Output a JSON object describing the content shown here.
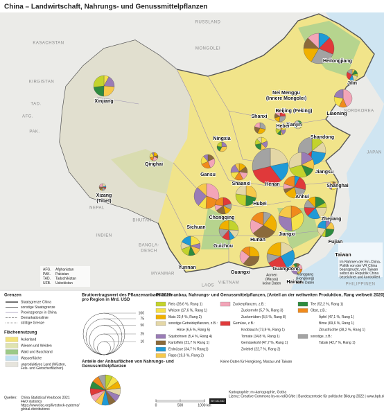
{
  "title": "China – Landwirtschaft, Nahrungs- und Genussmittelpflanzen",
  "map": {
    "provinces": [
      [
        "Xinjiang"
      ],
      [
        "Qinghai"
      ],
      [
        "Xizang",
        "(Tibet)"
      ],
      [
        "Gansu"
      ],
      [
        "Ningxia"
      ],
      [
        "Nei Menggu",
        "(Innere Mongolei)"
      ],
      [
        "Heilongjiang"
      ],
      [
        "Jilin"
      ],
      [
        "Liaoning"
      ],
      [
        "Beijing (Peking)"
      ],
      [
        "Tianjin"
      ],
      [
        "Hebei"
      ],
      [
        "Shanxi"
      ],
      [
        "Shandong"
      ],
      [
        "Shaanxi"
      ],
      [
        "Henan"
      ],
      [
        "Jiangsu"
      ],
      [
        "Shanghai"
      ],
      [
        "Anhui"
      ],
      [
        "Hubei"
      ],
      [
        "Sichuan"
      ],
      [
        "Chongqing"
      ],
      [
        "Zhejiang"
      ],
      [
        "Jiangxi"
      ],
      [
        "Hunan"
      ],
      [
        "Guizhou"
      ],
      [
        "Yunnan"
      ],
      [
        "Guangxi"
      ],
      [
        "Guangdong"
      ],
      [
        "Fujian"
      ],
      [
        "Taiwan"
      ],
      [
        "Hainan"
      ],
      [
        "Aomen",
        "(Macau)",
        "keine Daten"
      ],
      [
        "Xianggang",
        "(Hongkong)",
        "keine Daten"
      ]
    ],
    "countries": [
      "KASACHSTAN",
      "MONGOLEI",
      "RUSSLAND",
      "KIRGISTAN",
      "TAD.",
      "AFG.",
      "PAK.",
      "INDIEN",
      "NEPAL",
      "BHUTAN",
      "BANGLA-",
      "DESCH",
      "MYANMAR",
      "LAOS",
      "VIETNAM",
      "NORDKOREA",
      "JAPAN",
      "PHILIPPINEN"
    ],
    "taiwan_note": [
      "Im Rahmen der Ein-China-",
      "Politik von der VR China",
      "beansprucht, von Taiwan",
      "selbst als Republik China",
      "bezeichnet und kontrolliert"
    ],
    "abbreviations": [
      [
        "AFG.",
        "Afghanistan"
      ],
      [
        "PAK.",
        "Pakistan"
      ],
      [
        "TAD.",
        "Tadschikistan"
      ],
      [
        "UZB.",
        "Usbekistan"
      ]
    ]
  },
  "legend": {
    "borders": {
      "title": "Grenzen",
      "items": [
        "Staatsgrenze China",
        "sonstige Staatsgrenze",
        "Provinzgrenze in China",
        "Demarkationslinie",
        "strittige Grenze"
      ]
    },
    "land_use": {
      "title": "Flächennutzung",
      "items": [
        {
          "label": [
            "Ackerland"
          ],
          "color": "#f3e37a"
        },
        {
          "label": [
            "Wiesen und Weiden"
          ],
          "color": "#dfe3b0"
        },
        {
          "label": [
            "Wald und Buschland"
          ],
          "color": "#9cc987"
        },
        {
          "label": [
            "Wasserfläche"
          ],
          "color": "#bfe0f2"
        },
        {
          "label": [
            "unproduktives Land (Wüsten,",
            "Fels- und Gletscherflächen)"
          ],
          "color": "#e6e4dc"
        }
      ]
    },
    "value": {
      "title": [
        "Bruttoertragswert des Pflanzenanbaus 2020",
        "pro Region in Mrd. USD"
      ],
      "sizes": [
        100,
        75,
        50,
        25,
        10
      ]
    },
    "shares_title": [
      "Anteile der Anbauflächen von Nahrungs- und",
      "Genussmittelpflanzen"
    ],
    "crops": {
      "title": "Pflanzenanbau, Nahrungs- und Genussmittelpflanzen, (Anteil an der weltweiten Produktion, Rang weltweit 2020)",
      "columns": [
        [
          {
            "label": "Reis (28,6 %, Rang 1)",
            "color": "#c3d32c"
          },
          {
            "label": "Weizen (17,6 %, Rang 1)",
            "color": "#f6e14a"
          },
          {
            "label": "Mais 22,4 %, Rang 2)",
            "color": "#f0b000"
          },
          {
            "label": "sonstige Getreidepflanzen, z.B.:",
            "color": "#e4d7a6"
          },
          {
            "label": "Hirse (6,5 %, Rang 5)"
          },
          {
            "label": "Sojabohnen (5,4 %, Rang 4)",
            "color": "#9a7cb6"
          },
          {
            "label": "Kartoffeln (21,7 % Rang 1)",
            "color": "#8b6a3b"
          },
          {
            "label": "Erdnüsse (34,7 % Rang1)",
            "color": "#1f9ad6"
          },
          {
            "label": "Raps (19,3 %, Rang 2)",
            "color": "#f6c84a"
          }
        ],
        [
          {
            "label": "Zuckerpflanzen, z.B.:",
            "color": "#f3a5b8"
          },
          {
            "label": "Zuckerrohr (5,7 %, Rang 3)"
          },
          {
            "label": "Zuckerrüben (5,5 %, Rang 8)"
          },
          {
            "label": "Gemüse, z.B.:",
            "color": "#e0393a"
          },
          {
            "label": "Knoblauch (73,9 %, Rang 1)"
          },
          {
            "label": "Tomate (34,8 %, Rang 1)"
          },
          {
            "label": "Gemüsekohl (47,7 %, Rang 1)"
          },
          {
            "label": "Zwiebel (22,7 %, Rang 2)"
          }
        ],
        [
          {
            "label": "Tee (52,2 %, Rang 1)",
            "color": "#2e8b3e"
          },
          {
            "label": "Obst, z.B.:",
            "color": "#f08a1c"
          },
          {
            "label": "Äpfel (47,1 %, Rang 1)"
          },
          {
            "label": "Birne (69,6 %, Rang 1)"
          },
          {
            "label": "Zitrusfrüchte (28,2 %, Rang 1)"
          },
          {
            "label": "sonstige, z.B.:",
            "color": "#a3a3a3"
          },
          {
            "label": "Tabak (42,7 %, Rang 1)"
          }
        ]
      ],
      "note": "Keine Daten für Hongkong, Macau und Taiwan"
    }
  },
  "footer": {
    "sources_label": "Quellen:",
    "sources": [
      "China Statistical Yearbook 2021",
      "FAO statistics",
      "https://www.fao.org/livestock-systems/",
      "global-distributions"
    ],
    "credits": [
      "Kartographie: mr-kartographie, Gotha",
      "Lizenz: Creative Commons by-nc-nd/3.0/de | Bundeszentrale für politische Bildung 2022 | www.bpb.de"
    ],
    "scale": [
      0,
      500,
      {
        "value": 1000,
        "label": "1000 km"
      }
    ],
    "badge": "BY-NC-ND"
  }
}
